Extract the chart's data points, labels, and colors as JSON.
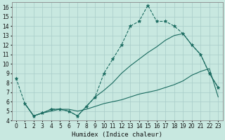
{
  "xlabel": "Humidex (Indice chaleur)",
  "bg_color": "#c8e8e0",
  "grid_color": "#a8ccc8",
  "line_color": "#1a6b60",
  "xlim": [
    -0.5,
    23.5
  ],
  "ylim": [
    4,
    16.5
  ],
  "xticks": [
    0,
    1,
    2,
    3,
    4,
    5,
    6,
    7,
    8,
    9,
    10,
    11,
    12,
    13,
    14,
    15,
    16,
    17,
    18,
    19,
    20,
    21,
    22,
    23
  ],
  "yticks": [
    4,
    5,
    6,
    7,
    8,
    9,
    10,
    11,
    12,
    13,
    14,
    15,
    16
  ],
  "line1_x": [
    0,
    1,
    2,
    3,
    4,
    5,
    6,
    7,
    8,
    9,
    10,
    11,
    12,
    13,
    14,
    15,
    16,
    17,
    18,
    19,
    20,
    21,
    22,
    23
  ],
  "line1_y": [
    8.5,
    5.8,
    4.5,
    4.8,
    5.2,
    5.2,
    5.0,
    4.5,
    5.5,
    6.5,
    9.0,
    10.5,
    12.0,
    14.0,
    14.5,
    16.2,
    14.5,
    14.5,
    14.0,
    13.2,
    12.0,
    11.0,
    9.0,
    7.5
  ],
  "line2_x": [
    1,
    2,
    3,
    4,
    5,
    6,
    7,
    8,
    9,
    10,
    11,
    12,
    13,
    14,
    15,
    16,
    17,
    18,
    19,
    20,
    21,
    22,
    23
  ],
  "line2_y": [
    5.8,
    4.5,
    4.8,
    5.2,
    5.2,
    5.0,
    4.5,
    5.5,
    6.5,
    7.2,
    8.0,
    9.0,
    9.8,
    10.5,
    11.2,
    11.8,
    12.5,
    13.0,
    13.2,
    12.0,
    11.0,
    9.0,
    7.5
  ],
  "line3_x": [
    1,
    2,
    3,
    4,
    5,
    6,
    7,
    8,
    9,
    10,
    11,
    12,
    13,
    14,
    15,
    16,
    17,
    18,
    19,
    20,
    21,
    22,
    23
  ],
  "line3_y": [
    5.8,
    4.5,
    4.8,
    5.0,
    5.2,
    5.2,
    5.0,
    5.2,
    5.5,
    5.8,
    6.0,
    6.2,
    6.5,
    6.8,
    7.0,
    7.2,
    7.5,
    7.8,
    8.2,
    8.8,
    9.2,
    9.5,
    6.5
  ]
}
